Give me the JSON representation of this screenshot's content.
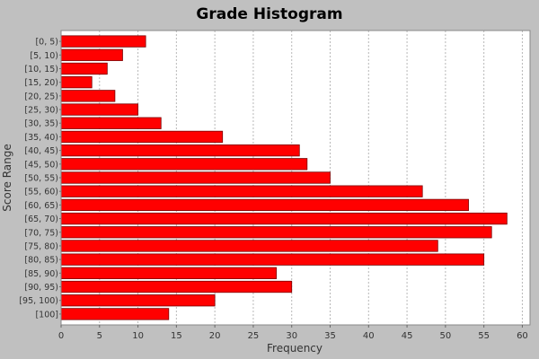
{
  "chart_data": {
    "type": "bar",
    "orientation": "horizontal",
    "title": "Grade Histogram",
    "xlabel": "Frequency",
    "ylabel": "Score Range",
    "xlim": [
      0,
      61
    ],
    "xticks": [
      0,
      5,
      10,
      15,
      20,
      25,
      30,
      35,
      40,
      45,
      50,
      55,
      60
    ],
    "grid": true,
    "categories": [
      "[0, 5)",
      "[5, 10)",
      "[10, 15)",
      "[15, 20)",
      "[20, 25)",
      "[25, 30)",
      "[30, 35)",
      "[35, 40)",
      "[40, 45)",
      "[45, 50)",
      "[50, 55)",
      "[55, 60)",
      "[60, 65)",
      "[65, 70)",
      "[70, 75)",
      "[75, 80)",
      "[80, 85)",
      "[85, 90)",
      "[90, 95)",
      "[95, 100)",
      "[100]"
    ],
    "values": [
      11,
      8,
      6,
      4,
      7,
      10,
      13,
      21,
      31,
      32,
      35,
      47,
      53,
      58,
      56,
      49,
      55,
      28,
      30,
      20,
      14
    ],
    "bar_color": "#ff0000",
    "bar_stroke": "#7a0000",
    "plot_background": "#ffffff",
    "page_background": "#c0c0c0"
  }
}
